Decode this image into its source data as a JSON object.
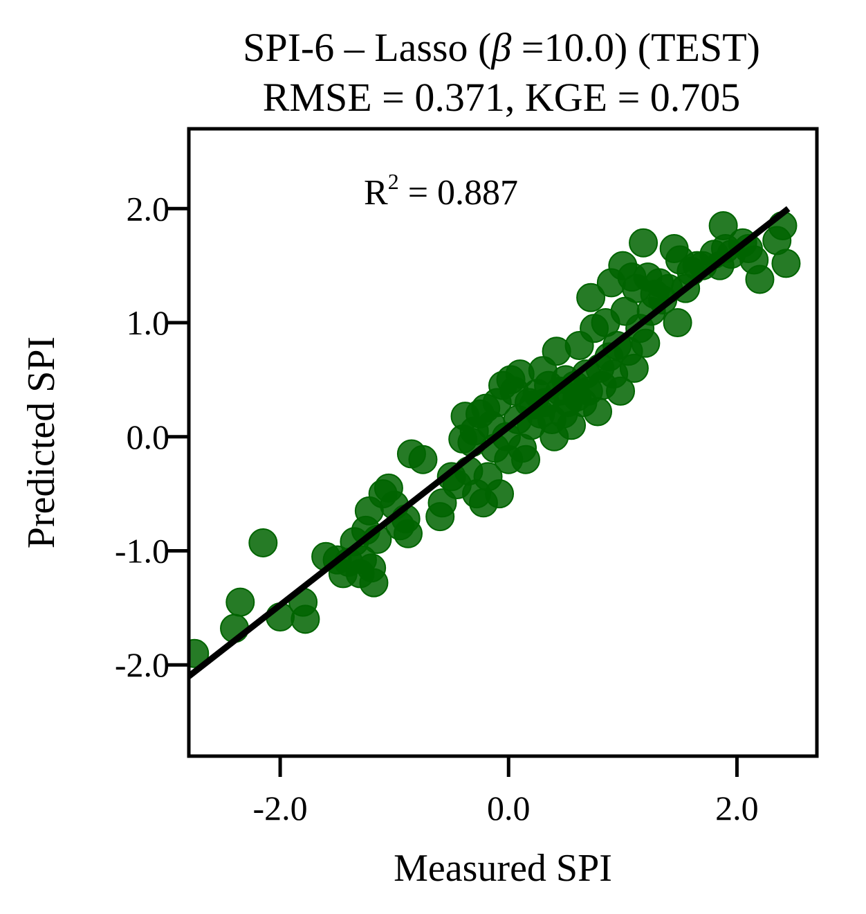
{
  "chart_data": {
    "type": "scatter",
    "title_line1_prefix": "SPI-6 – Lasso (",
    "title_line1_symbol": "β",
    "title_line1_suffix": " =10.0) (TEST)",
    "title_line2": "RMSE = 0.371, KGE = 0.705",
    "xlabel": "Measured SPI",
    "ylabel": "Predicted SPI",
    "annotation_prefix": "R",
    "annotation_sup": "2",
    "annotation_suffix": " = 0.887",
    "xlim": [
      -2.8,
      2.7
    ],
    "ylim": [
      -2.8,
      2.7
    ],
    "x_ticks": [
      -2.0,
      0.0,
      2.0
    ],
    "x_tick_labels": [
      "-2.0",
      "0.0",
      "2.0"
    ],
    "y_ticks": [
      -2.0,
      -1.0,
      0.0,
      1.0,
      2.0
    ],
    "y_tick_labels": [
      "-2.0",
      "-1.0",
      "0.0",
      "1.0",
      "2.0"
    ],
    "grid": false,
    "point_color": "#006400",
    "line_color": "#000000",
    "fit_line": {
      "x": [
        -2.8,
        2.45
      ],
      "y": [
        -2.1,
        2.0
      ]
    },
    "points": [
      {
        "x": -2.75,
        "y": -1.9
      },
      {
        "x": -2.4,
        "y": -1.68
      },
      {
        "x": -2.35,
        "y": -1.45
      },
      {
        "x": -2.15,
        "y": -0.93
      },
      {
        "x": -2.0,
        "y": -1.58
      },
      {
        "x": -1.8,
        "y": -1.45
      },
      {
        "x": -1.78,
        "y": -1.6
      },
      {
        "x": -1.6,
        "y": -1.05
      },
      {
        "x": -1.5,
        "y": -1.08
      },
      {
        "x": -1.45,
        "y": -1.2
      },
      {
        "x": -1.4,
        "y": -1.1
      },
      {
        "x": -1.35,
        "y": -0.92
      },
      {
        "x": -1.3,
        "y": -1.2
      },
      {
        "x": -1.28,
        "y": -1.08
      },
      {
        "x": -1.25,
        "y": -0.82
      },
      {
        "x": -1.22,
        "y": -0.65
      },
      {
        "x": -1.2,
        "y": -1.15
      },
      {
        "x": -1.18,
        "y": -1.28
      },
      {
        "x": -1.15,
        "y": -0.9
      },
      {
        "x": -1.1,
        "y": -0.5
      },
      {
        "x": -1.05,
        "y": -0.45
      },
      {
        "x": -1.0,
        "y": -0.6
      },
      {
        "x": -0.95,
        "y": -0.78
      },
      {
        "x": -0.9,
        "y": -0.72
      },
      {
        "x": -0.88,
        "y": -0.85
      },
      {
        "x": -0.85,
        "y": -0.15
      },
      {
        "x": -0.75,
        "y": -0.2
      },
      {
        "x": -0.6,
        "y": -0.7
      },
      {
        "x": -0.58,
        "y": -0.58
      },
      {
        "x": -0.5,
        "y": -0.35
      },
      {
        "x": -0.45,
        "y": -0.42
      },
      {
        "x": -0.4,
        "y": -0.02
      },
      {
        "x": -0.38,
        "y": 0.18
      },
      {
        "x": -0.35,
        "y": -0.3
      },
      {
        "x": -0.32,
        "y": -0.05
      },
      {
        "x": -0.3,
        "y": 0.05
      },
      {
        "x": -0.28,
        "y": -0.5
      },
      {
        "x": -0.25,
        "y": 0.2
      },
      {
        "x": -0.22,
        "y": -0.58
      },
      {
        "x": -0.2,
        "y": 0.25
      },
      {
        "x": -0.18,
        "y": -0.35
      },
      {
        "x": -0.15,
        "y": 0.1
      },
      {
        "x": -0.12,
        "y": -0.1
      },
      {
        "x": -0.1,
        "y": 0.3
      },
      {
        "x": -0.08,
        "y": -0.5
      },
      {
        "x": -0.05,
        "y": 0.45
      },
      {
        "x": -0.02,
        "y": 0.0
      },
      {
        "x": 0.0,
        "y": -0.2
      },
      {
        "x": 0.02,
        "y": 0.5
      },
      {
        "x": 0.05,
        "y": 0.4
      },
      {
        "x": 0.08,
        "y": 0.15
      },
      {
        "x": 0.1,
        "y": 0.55
      },
      {
        "x": 0.12,
        "y": -0.1
      },
      {
        "x": 0.15,
        "y": -0.2
      },
      {
        "x": 0.18,
        "y": 0.3
      },
      {
        "x": 0.2,
        "y": 0.1
      },
      {
        "x": 0.22,
        "y": 0.28
      },
      {
        "x": 0.25,
        "y": 0.38
      },
      {
        "x": 0.28,
        "y": 0.2
      },
      {
        "x": 0.3,
        "y": 0.58
      },
      {
        "x": 0.32,
        "y": 0.3
      },
      {
        "x": 0.35,
        "y": 0.45
      },
      {
        "x": 0.38,
        "y": 0.15
      },
      {
        "x": 0.4,
        "y": 0.0
      },
      {
        "x": 0.42,
        "y": 0.75
      },
      {
        "x": 0.45,
        "y": 0.4
      },
      {
        "x": 0.48,
        "y": 0.2
      },
      {
        "x": 0.5,
        "y": 0.5
      },
      {
        "x": 0.52,
        "y": 0.3
      },
      {
        "x": 0.55,
        "y": 0.1
      },
      {
        "x": 0.58,
        "y": 0.45
      },
      {
        "x": 0.6,
        "y": 0.35
      },
      {
        "x": 0.62,
        "y": 0.8
      },
      {
        "x": 0.65,
        "y": 0.3
      },
      {
        "x": 0.68,
        "y": 0.55
      },
      {
        "x": 0.7,
        "y": 0.4
      },
      {
        "x": 0.72,
        "y": 1.22
      },
      {
        "x": 0.75,
        "y": 0.95
      },
      {
        "x": 0.78,
        "y": 0.22
      },
      {
        "x": 0.8,
        "y": 0.6
      },
      {
        "x": 0.82,
        "y": 0.45
      },
      {
        "x": 0.85,
        "y": 1.0
      },
      {
        "x": 0.88,
        "y": 0.7
      },
      {
        "x": 0.9,
        "y": 1.35
      },
      {
        "x": 0.92,
        "y": 0.55
      },
      {
        "x": 0.95,
        "y": 0.8
      },
      {
        "x": 0.98,
        "y": 0.4
      },
      {
        "x": 1.0,
        "y": 1.5
      },
      {
        "x": 1.02,
        "y": 1.1
      },
      {
        "x": 1.05,
        "y": 0.75
      },
      {
        "x": 1.08,
        "y": 1.4
      },
      {
        "x": 1.1,
        "y": 0.6
      },
      {
        "x": 1.12,
        "y": 1.3
      },
      {
        "x": 1.15,
        "y": 0.95
      },
      {
        "x": 1.18,
        "y": 1.7
      },
      {
        "x": 1.2,
        "y": 0.82
      },
      {
        "x": 1.22,
        "y": 1.4
      },
      {
        "x": 1.25,
        "y": 1.1
      },
      {
        "x": 1.28,
        "y": 1.25
      },
      {
        "x": 1.32,
        "y": 1.35
      },
      {
        "x": 1.35,
        "y": 1.2
      },
      {
        "x": 1.4,
        "y": 1.3
      },
      {
        "x": 1.45,
        "y": 1.65
      },
      {
        "x": 1.48,
        "y": 1.0
      },
      {
        "x": 1.5,
        "y": 1.55
      },
      {
        "x": 1.55,
        "y": 1.3
      },
      {
        "x": 1.6,
        "y": 1.45
      },
      {
        "x": 1.65,
        "y": 1.5
      },
      {
        "x": 1.7,
        "y": 1.5
      },
      {
        "x": 1.8,
        "y": 1.6
      },
      {
        "x": 1.85,
        "y": 1.5
      },
      {
        "x": 1.88,
        "y": 1.85
      },
      {
        "x": 1.9,
        "y": 1.65
      },
      {
        "x": 1.95,
        "y": 1.6
      },
      {
        "x": 2.05,
        "y": 1.7
      },
      {
        "x": 2.1,
        "y": 1.65
      },
      {
        "x": 2.15,
        "y": 1.55
      },
      {
        "x": 2.2,
        "y": 1.38
      },
      {
        "x": 2.35,
        "y": 1.72
      },
      {
        "x": 2.4,
        "y": 1.85
      },
      {
        "x": 2.43,
        "y": 1.52
      }
    ]
  }
}
